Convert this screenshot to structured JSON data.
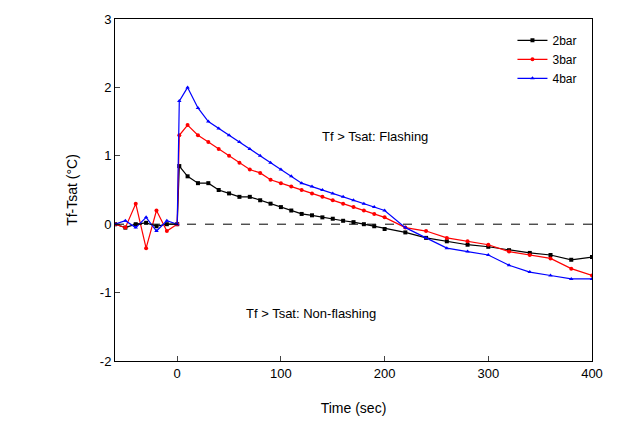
{
  "chart_data": {
    "type": "line",
    "x_label": "Time (sec)",
    "y_label": "Tf-Tsat (°C)",
    "x": [
      -60,
      -50,
      -40,
      -30,
      -20,
      -10,
      0,
      2,
      10,
      20,
      30,
      40,
      50,
      60,
      70,
      80,
      90,
      100,
      110,
      120,
      130,
      140,
      150,
      160,
      170,
      180,
      190,
      200,
      220,
      240,
      260,
      280,
      300,
      320,
      340,
      360,
      380,
      400
    ],
    "series": [
      {
        "name": "2bar",
        "color": "#000000",
        "marker": "square",
        "line_style": "solid",
        "values": [
          0,
          -0.05,
          0,
          0.02,
          -0.03,
          0,
          0,
          0.85,
          0.7,
          0.6,
          0.6,
          0.5,
          0.45,
          0.4,
          0.4,
          0.35,
          0.3,
          0.25,
          0.2,
          0.15,
          0.13,
          0.1,
          0.08,
          0.05,
          0.03,
          0,
          -0.03,
          -0.07,
          -0.12,
          -0.2,
          -0.25,
          -0.3,
          -0.33,
          -0.38,
          -0.42,
          -0.45,
          -0.52,
          -0.48
        ]
      },
      {
        "name": "3bar",
        "color": "#ff0000",
        "marker": "circle",
        "line_style": "solid",
        "values": [
          0,
          -0.05,
          0.3,
          -0.35,
          0.2,
          -0.1,
          0,
          1.3,
          1.45,
          1.3,
          1.2,
          1.1,
          1.0,
          0.9,
          0.8,
          0.75,
          0.65,
          0.6,
          0.55,
          0.5,
          0.45,
          0.4,
          0.35,
          0.3,
          0.25,
          0.2,
          0.15,
          0.1,
          -0.05,
          -0.1,
          -0.2,
          -0.25,
          -0.3,
          -0.4,
          -0.45,
          -0.5,
          -0.65,
          -0.75
        ]
      },
      {
        "name": "4bar",
        "color": "#0000ff",
        "marker": "triangle-up",
        "line_style": "solid",
        "values": [
          0,
          0.05,
          -0.05,
          0.1,
          -0.1,
          0.05,
          0,
          1.8,
          2.0,
          1.7,
          1.5,
          1.4,
          1.3,
          1.2,
          1.1,
          1.0,
          0.9,
          0.8,
          0.7,
          0.6,
          0.55,
          0.5,
          0.45,
          0.4,
          0.35,
          0.3,
          0.25,
          0.2,
          -0.05,
          -0.2,
          -0.35,
          -0.4,
          -0.45,
          -0.6,
          -0.7,
          -0.75,
          -0.8,
          -0.8
        ]
      }
    ],
    "xlim": [
      -60,
      400
    ],
    "xticks": [
      0,
      100,
      200,
      300,
      400
    ],
    "ylim": [
      -2,
      3
    ],
    "yticks": [
      -2,
      -1,
      0,
      1,
      2,
      3
    ],
    "reference_lines": [
      {
        "y": 0,
        "line_style": "dash"
      }
    ],
    "annotations": [
      {
        "text": "Tf > Tsat: Flashing"
      },
      {
        "text": "Tf > Tsat: Non-flashing"
      }
    ],
    "grid": false,
    "legend": "top right"
  }
}
